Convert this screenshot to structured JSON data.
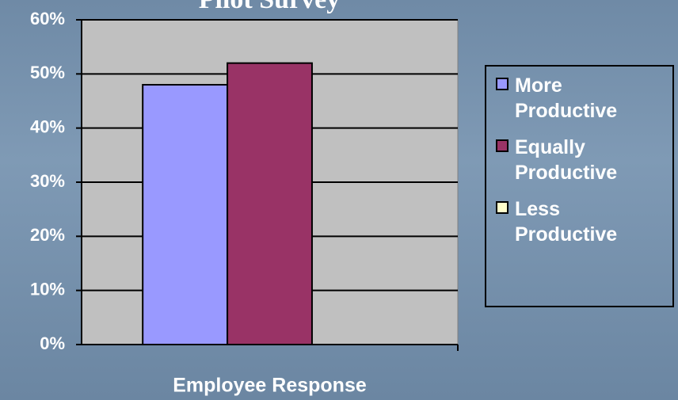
{
  "chart_data": {
    "type": "bar",
    "title": "Pilot Survey",
    "categories": [
      "Employee Response"
    ],
    "series": [
      {
        "name": "More Productive",
        "color": "#9999ff",
        "values": [
          48
        ]
      },
      {
        "name": "Equally Productive",
        "color": "#993366",
        "values": [
          52
        ]
      },
      {
        "name": "Less Productive",
        "color": "#ffffcc",
        "values": [
          0
        ]
      }
    ],
    "ylim": [
      0,
      60
    ],
    "yticks": [
      {
        "value": 0,
        "label": "0%"
      },
      {
        "value": 10,
        "label": "10%"
      },
      {
        "value": 20,
        "label": "20%"
      },
      {
        "value": 30,
        "label": "30%"
      },
      {
        "value": 40,
        "label": "40%"
      },
      {
        "value": 50,
        "label": "50%"
      },
      {
        "value": 60,
        "label": "60%"
      }
    ],
    "grid": true,
    "legend": "right"
  }
}
